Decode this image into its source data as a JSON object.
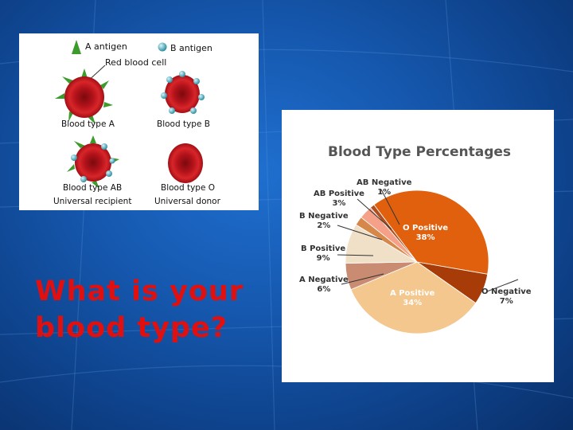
{
  "slide": {
    "question_line1": "What is your",
    "question_line2": "blood type?"
  },
  "antigen_diagram": {
    "legend_a": "A antigen",
    "legend_b": "B antigen",
    "pointer_label": "Red blood cell",
    "cells": [
      {
        "caption": "Blood type A",
        "sub": "",
        "antigens": "A"
      },
      {
        "caption": "Blood type B",
        "sub": "",
        "antigens": "B"
      },
      {
        "caption": "Blood type AB",
        "sub": "Universal recipient",
        "antigens": "AB"
      },
      {
        "caption": "Blood type O",
        "sub": "Universal donor",
        "antigens": "none"
      }
    ],
    "colors": {
      "a_antigen": "#3d9a2c",
      "b_antigen": "#3fa9b8",
      "cell": "#c0161a"
    }
  },
  "chart_data": {
    "type": "pie",
    "title": "Blood Type Percentages",
    "slices": [
      {
        "name": "O Positive",
        "pct_label": "38%",
        "value": 38,
        "color": "#e0600e"
      },
      {
        "name": "O Negative",
        "pct_label": "7%",
        "value": 7,
        "color": "#a83c08"
      },
      {
        "name": "A Positive",
        "pct_label": "34%",
        "value": 34,
        "color": "#f3c78d"
      },
      {
        "name": "A Negative",
        "pct_label": "6%",
        "value": 6,
        "color": "#c98c72"
      },
      {
        "name": "B Positive",
        "pct_label": "9%",
        "value": 9,
        "color": "#f0e0c8"
      },
      {
        "name": "B Negative",
        "pct_label": "2%",
        "value": 2,
        "color": "#d6874a"
      },
      {
        "name": "AB Positive",
        "pct_label": "3%",
        "value": 3,
        "color": "#f5a088"
      },
      {
        "name": "AB Negative",
        "pct_label": "1%",
        "value": 1,
        "color": "#b05020"
      }
    ]
  }
}
